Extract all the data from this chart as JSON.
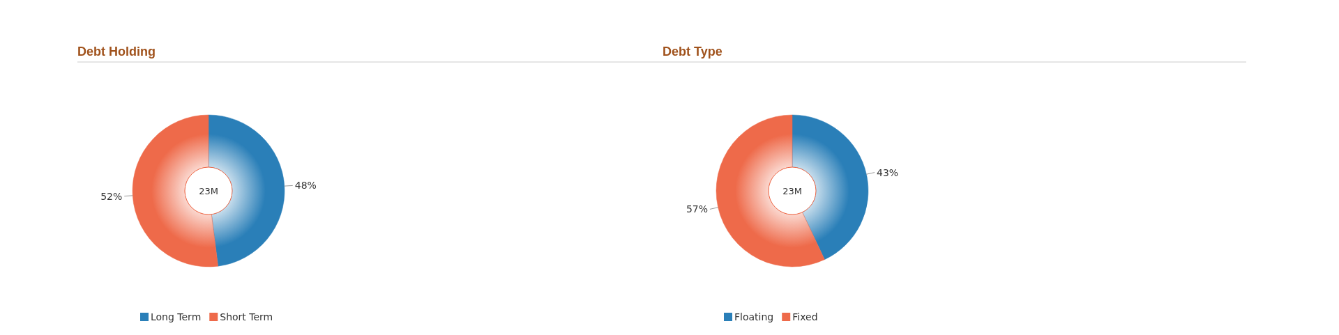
{
  "chart_data": [
    {
      "type": "donut",
      "title": "Debt Holding",
      "categories": [
        "Long Term",
        "Short Term"
      ],
      "values": [
        48,
        52
      ],
      "colors": [
        "#2a7fb8",
        "#ee6a4a"
      ],
      "value_labels": [
        "48%",
        "52%"
      ],
      "annotations": [
        "23M"
      ],
      "legend": "bottom"
    },
    {
      "type": "donut",
      "title": "Debt Type",
      "categories": [
        "Floating",
        "Fixed"
      ],
      "values": [
        43,
        57
      ],
      "colors": [
        "#2a7fb8",
        "#ee6a4a"
      ],
      "value_labels": [
        "43%",
        "57%"
      ],
      "annotations": [
        "23M"
      ],
      "legend": "bottom"
    }
  ]
}
